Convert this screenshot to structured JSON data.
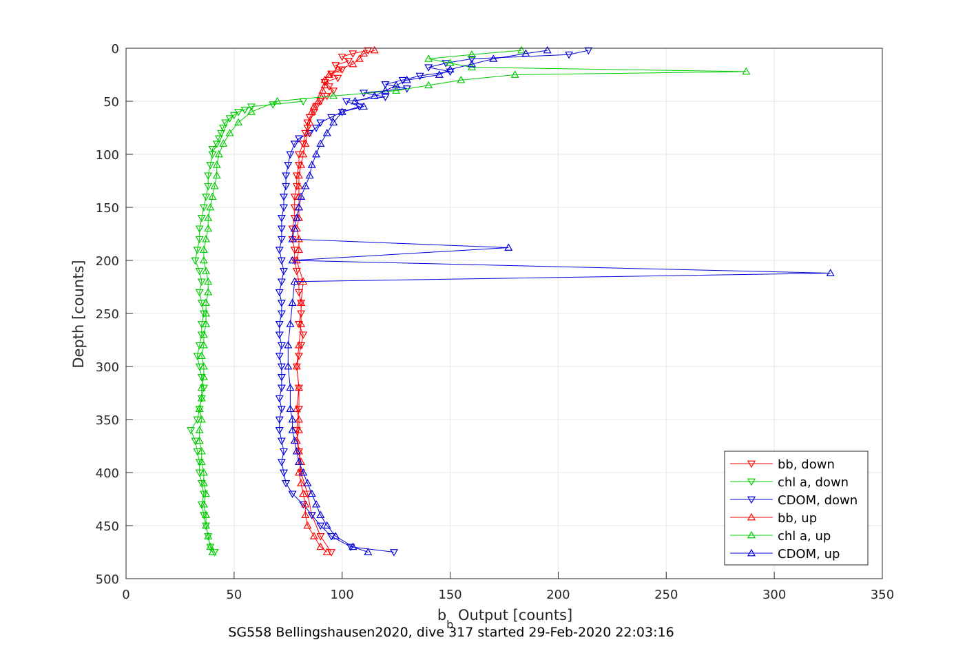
{
  "chart_data": {
    "type": "line",
    "title": "",
    "xlabel": "b_b Output [counts]",
    "xlabel_main": "b",
    "xlabel_sub": "b",
    "xlabel_rest": " Output [counts]",
    "ylabel": "Depth [counts]",
    "subtitle": "SG558 Bellingshausen2020, dive 317 started 29-Feb-2020 22:03:16",
    "xlim": [
      0,
      350
    ],
    "ylim": [
      0,
      500
    ],
    "y_reversed": true,
    "grid": true,
    "legend_position": "bottom-right",
    "x_ticks": [
      "0",
      "50",
      "100",
      "150",
      "200",
      "250",
      "300",
      "350"
    ],
    "y_ticks": [
      "0",
      "50",
      "100",
      "150",
      "200",
      "250",
      "300",
      "350",
      "400",
      "450",
      "500"
    ],
    "series": [
      {
        "name": "bb, down",
        "color": "#ff0000",
        "marker": "triangle-down",
        "depth": [
          2,
          5,
          8,
          12,
          16,
          20,
          24,
          28,
          32,
          36,
          40,
          45,
          50,
          55,
          60,
          65,
          70,
          75,
          80,
          90,
          100,
          110,
          120,
          130,
          140,
          150,
          160,
          170,
          180,
          190,
          200,
          210,
          220,
          230,
          240,
          250,
          260,
          270,
          280,
          290,
          300,
          320,
          340,
          360,
          380,
          400,
          420,
          440,
          460,
          475
        ],
        "values": [
          112,
          105,
          100,
          103,
          97,
          100,
          95,
          98,
          92,
          94,
          96,
          93,
          90,
          88,
          87,
          85,
          84,
          84,
          83,
          82,
          80,
          80,
          79,
          79,
          78,
          78,
          78,
          77,
          77,
          78,
          78,
          79,
          80,
          80,
          81,
          81,
          80,
          82,
          81,
          80,
          79,
          80,
          80,
          79,
          80,
          81,
          84,
          86,
          90,
          95
        ]
      },
      {
        "name": "chl a, down",
        "color": "#00cc00",
        "marker": "triangle-down",
        "depth": [
          50,
          53,
          55,
          58,
          60,
          63,
          66,
          70,
          75,
          80,
          85,
          90,
          95,
          100,
          110,
          120,
          130,
          140,
          150,
          160,
          170,
          180,
          190,
          200,
          210,
          220,
          230,
          240,
          250,
          260,
          270,
          280,
          290,
          300,
          310,
          320,
          330,
          340,
          350,
          360,
          370,
          380,
          390,
          400,
          410,
          420,
          430,
          440,
          450,
          460,
          470,
          475
        ],
        "values": [
          82,
          68,
          58,
          55,
          52,
          50,
          48,
          46,
          45,
          44,
          43,
          42,
          40,
          40,
          39,
          38,
          38,
          37,
          36,
          35,
          34,
          34,
          33,
          32,
          34,
          35,
          34,
          35,
          36,
          35,
          35,
          34,
          33,
          34,
          35,
          36,
          35,
          34,
          33,
          30,
          32,
          33,
          34,
          34,
          35,
          36,
          35,
          36,
          37,
          38,
          39,
          41
        ]
      },
      {
        "name": "CDOM, down",
        "color": "#0000dd",
        "marker": "triangle-down",
        "depth": [
          2,
          6,
          10,
          14,
          18,
          22,
          26,
          30,
          34,
          38,
          42,
          46,
          50,
          55,
          60,
          65,
          70,
          75,
          80,
          85,
          90,
          100,
          110,
          120,
          130,
          140,
          150,
          160,
          170,
          180,
          190,
          200,
          210,
          220,
          230,
          240,
          250,
          260,
          270,
          280,
          290,
          300,
          310,
          320,
          330,
          340,
          350,
          360,
          370,
          380,
          390,
          400,
          410,
          420,
          430,
          440,
          450,
          460,
          470,
          475
        ],
        "values": [
          214,
          205,
          160,
          148,
          140,
          150,
          136,
          128,
          120,
          130,
          110,
          120,
          102,
          108,
          100,
          95,
          90,
          88,
          85,
          80,
          78,
          76,
          75,
          74,
          74,
          73,
          73,
          72,
          72,
          72,
          71,
          72,
          73,
          72,
          71,
          72,
          72,
          71,
          71,
          72,
          71,
          72,
          72,
          72,
          71,
          72,
          71,
          71,
          72,
          73,
          72,
          73,
          74,
          77,
          82,
          86,
          90,
          95,
          104,
          124
        ]
      },
      {
        "name": "bb, up",
        "color": "#ff0000",
        "marker": "triangle-up",
        "depth": [
          475,
          470,
          460,
          450,
          440,
          430,
          420,
          410,
          400,
          390,
          380,
          370,
          360,
          350,
          340,
          320,
          300,
          280,
          260,
          240,
          220,
          200,
          190,
          180,
          170,
          160,
          150,
          140,
          130,
          120,
          110,
          100,
          90,
          80,
          70,
          60,
          55,
          50,
          45,
          40,
          35,
          30,
          25,
          20,
          15,
          10,
          5,
          2
        ],
        "values": [
          93,
          90,
          87,
          84,
          83,
          83,
          82,
          81,
          80,
          81,
          80,
          79,
          80,
          80,
          79,
          80,
          79,
          80,
          81,
          81,
          82,
          79,
          80,
          80,
          79,
          80,
          80,
          80,
          80,
          80,
          81,
          82,
          83,
          84,
          85,
          86,
          87,
          89,
          90,
          91,
          92,
          92,
          94,
          98,
          105,
          108,
          110,
          115
        ]
      },
      {
        "name": "chl a, up",
        "color": "#00cc00",
        "marker": "triangle-up",
        "depth": [
          475,
          470,
          460,
          450,
          440,
          430,
          420,
          410,
          400,
          390,
          380,
          370,
          360,
          350,
          340,
          330,
          320,
          310,
          300,
          290,
          280,
          270,
          260,
          250,
          240,
          230,
          220,
          210,
          200,
          190,
          180,
          170,
          160,
          150,
          140,
          130,
          120,
          110,
          100,
          90,
          80,
          70,
          60,
          50,
          45,
          40,
          35,
          30,
          25,
          22,
          18,
          14,
          10,
          6,
          2
        ],
        "values": [
          40,
          39,
          38,
          37,
          37,
          36,
          37,
          36,
          36,
          35,
          35,
          34,
          34,
          35,
          34,
          35,
          35,
          36,
          36,
          35,
          36,
          36,
          37,
          37,
          37,
          38,
          38,
          37,
          36,
          36,
          37,
          38,
          38,
          39,
          40,
          41,
          42,
          42,
          43,
          45,
          48,
          52,
          58,
          70,
          96,
          125,
          140,
          155,
          180,
          287,
          160,
          150,
          140,
          160,
          183
        ]
      },
      {
        "name": "CDOM, up",
        "color": "#0000dd",
        "marker": "triangle-up",
        "depth": [
          475,
          470,
          460,
          450,
          440,
          430,
          420,
          410,
          400,
          390,
          380,
          370,
          360,
          350,
          340,
          320,
          300,
          280,
          260,
          240,
          220,
          212,
          200,
          188,
          180,
          170,
          160,
          150,
          140,
          130,
          120,
          110,
          100,
          90,
          80,
          70,
          60,
          55,
          50,
          45,
          40,
          35,
          30,
          25,
          20,
          15,
          10,
          5,
          2
        ],
        "values": [
          112,
          105,
          97,
          93,
          90,
          88,
          86,
          84,
          82,
          80,
          79,
          78,
          77,
          77,
          76,
          76,
          75,
          75,
          76,
          77,
          78,
          326,
          77,
          177,
          77,
          78,
          79,
          80,
          81,
          83,
          85,
          86,
          88,
          90,
          93,
          96,
          100,
          110,
          106,
          115,
          120,
          125,
          130,
          145,
          150,
          160,
          170,
          185,
          195
        ]
      }
    ]
  }
}
